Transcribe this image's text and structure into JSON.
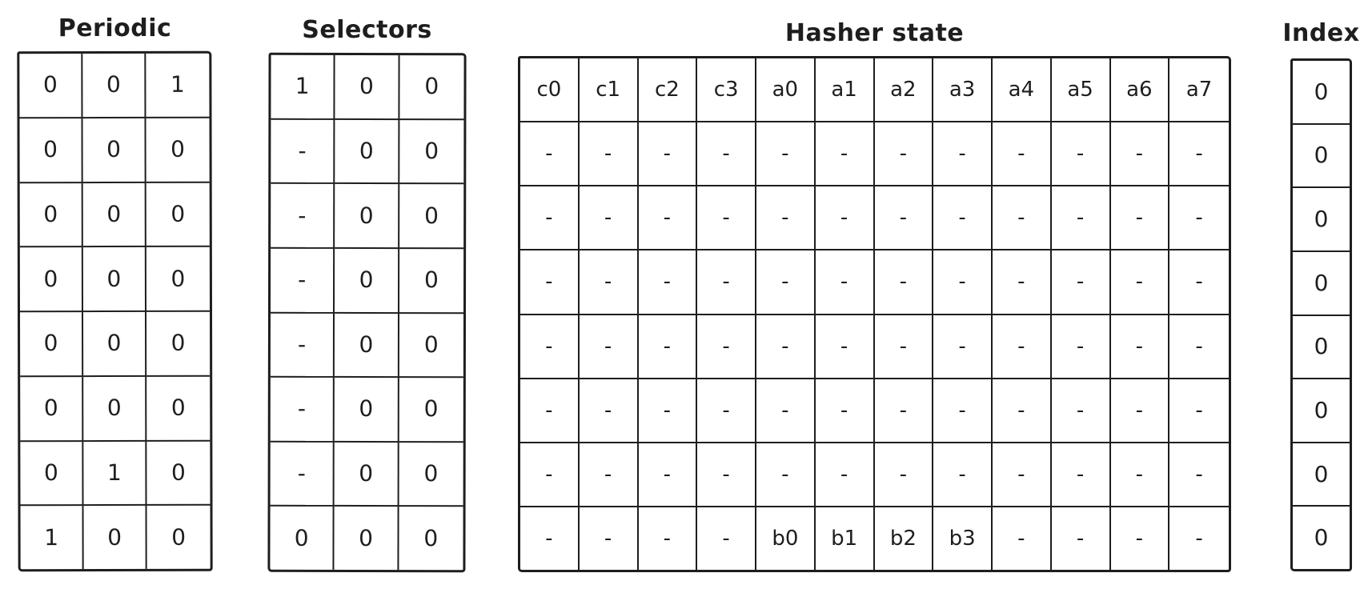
{
  "colors": {
    "ink": "#1e1e1e",
    "paper": "#ffffff"
  },
  "tables": [
    {
      "id": "periodic",
      "title": "Periodic",
      "columns": 3,
      "header": null,
      "rows": [
        [
          "0",
          "0",
          "1"
        ],
        [
          "0",
          "0",
          "0"
        ],
        [
          "0",
          "0",
          "0"
        ],
        [
          "0",
          "0",
          "0"
        ],
        [
          "0",
          "0",
          "0"
        ],
        [
          "0",
          "0",
          "0"
        ],
        [
          "0",
          "1",
          "0"
        ],
        [
          "1",
          "0",
          "0"
        ]
      ]
    },
    {
      "id": "selectors",
      "title": "Selectors",
      "columns": 3,
      "header": null,
      "rows": [
        [
          "1",
          "0",
          "0"
        ],
        [
          "-",
          "0",
          "0"
        ],
        [
          "-",
          "0",
          "0"
        ],
        [
          "-",
          "0",
          "0"
        ],
        [
          "-",
          "0",
          "0"
        ],
        [
          "-",
          "0",
          "0"
        ],
        [
          "-",
          "0",
          "0"
        ],
        [
          "0",
          "0",
          "0"
        ]
      ]
    },
    {
      "id": "hasher",
      "title": "Hasher state",
      "columns": 12,
      "header": [
        "c0",
        "c1",
        "c2",
        "c3",
        "a0",
        "a1",
        "a2",
        "a3",
        "a4",
        "a5",
        "a6",
        "a7"
      ],
      "rows": [
        [
          "-",
          "-",
          "-",
          "-",
          "-",
          "-",
          "-",
          "-",
          "-",
          "-",
          "-",
          "-"
        ],
        [
          "-",
          "-",
          "-",
          "-",
          "-",
          "-",
          "-",
          "-",
          "-",
          "-",
          "-",
          "-"
        ],
        [
          "-",
          "-",
          "-",
          "-",
          "-",
          "-",
          "-",
          "-",
          "-",
          "-",
          "-",
          "-"
        ],
        [
          "-",
          "-",
          "-",
          "-",
          "-",
          "-",
          "-",
          "-",
          "-",
          "-",
          "-",
          "-"
        ],
        [
          "-",
          "-",
          "-",
          "-",
          "-",
          "-",
          "-",
          "-",
          "-",
          "-",
          "-",
          "-"
        ],
        [
          "-",
          "-",
          "-",
          "-",
          "-",
          "-",
          "-",
          "-",
          "-",
          "-",
          "-",
          "-"
        ],
        [
          "-",
          "-",
          "-",
          "-",
          "b0",
          "b1",
          "b2",
          "b3",
          "-",
          "-",
          "-",
          "-"
        ]
      ]
    },
    {
      "id": "index",
      "title": "Index",
      "columns": 1,
      "header": null,
      "rows": [
        [
          "0"
        ],
        [
          "0"
        ],
        [
          "0"
        ],
        [
          "0"
        ],
        [
          "0"
        ],
        [
          "0"
        ],
        [
          "0"
        ],
        [
          "0"
        ]
      ]
    }
  ]
}
